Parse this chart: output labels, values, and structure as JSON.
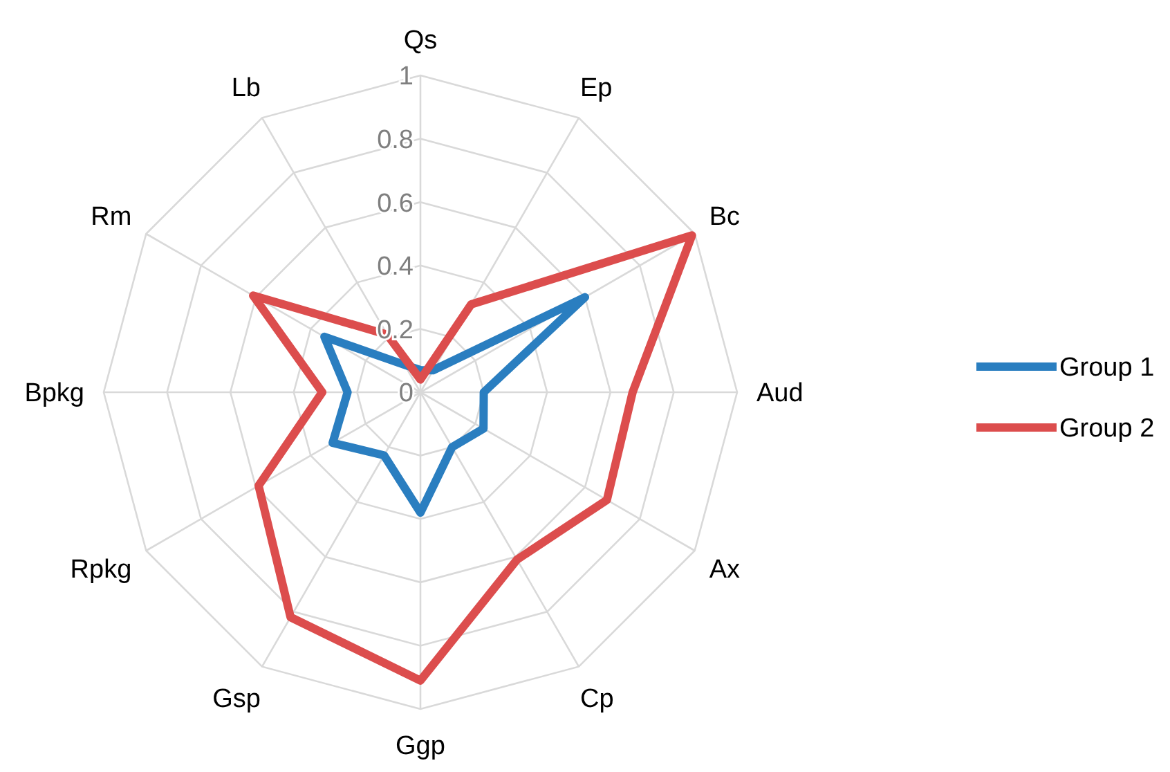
{
  "chart_data": {
    "type": "radar",
    "categories": [
      "Qs",
      "Ep",
      "Bc",
      "Aud",
      "Ax",
      "Cp",
      "Ggp",
      "Gsp",
      "Rpkg",
      "Bpkg",
      "Rm",
      "Lb"
    ],
    "series": [
      {
        "name": "Group 1",
        "color": "#2a7ec0",
        "values": [
          0.07,
          0.08,
          0.6,
          0.2,
          0.23,
          0.2,
          0.38,
          0.23,
          0.32,
          0.23,
          0.35,
          0.1
        ]
      },
      {
        "name": "Group 2",
        "color": "#dc4d4d",
        "values": [
          0.04,
          0.32,
          0.99,
          0.67,
          0.68,
          0.61,
          0.91,
          0.82,
          0.59,
          0.31,
          0.61,
          0.21
        ]
      }
    ],
    "ylim": [
      0,
      1
    ],
    "yticks": [
      0,
      0.2,
      0.4,
      0.6,
      0.8,
      1
    ],
    "grid": true,
    "legend": "right"
  }
}
